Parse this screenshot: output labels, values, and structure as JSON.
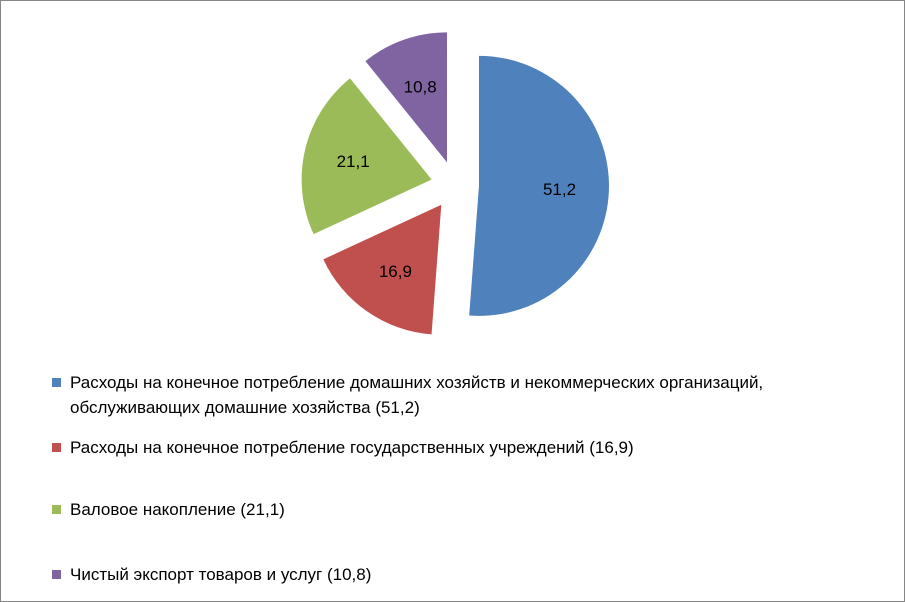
{
  "chart_data": {
    "type": "pie",
    "title": "",
    "exploded": true,
    "legend_position": "bottom",
    "series": [
      {
        "name": "",
        "values": [
          51.2,
          16.9,
          21.1,
          10.8
        ],
        "data_labels": [
          "51,2",
          "16,9",
          "21,1",
          "10,8"
        ]
      }
    ],
    "categories": [
      "Расходы на конечное потребление домашних хозяйств и некоммерческих организаций, обслуживающих домашние хозяйства (51,2)",
      "Расходы на конечное потребление государственных учреждений (16,9)",
      "Валовое накопление (21,1)",
      "Чистый экспорт товаров и услуг (10,8)"
    ],
    "colors": [
      "#4F81BD",
      "#C0504D",
      "#9BBB59",
      "#8064A2"
    ]
  }
}
